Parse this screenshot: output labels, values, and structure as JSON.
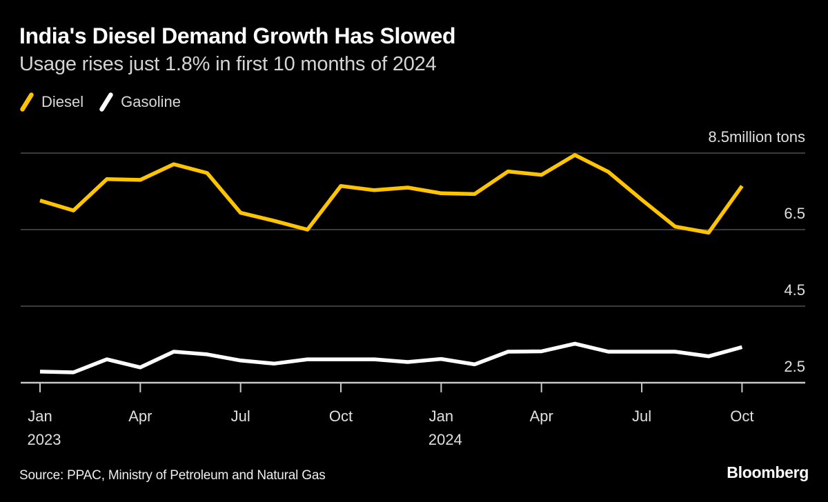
{
  "footer": {
    "source": "Source: PPAC, Ministry of Petroleum and Natural Gas",
    "brand": "Bloomberg"
  },
  "colors": {
    "background": "#000000",
    "title_text": "#FFFFFF",
    "subtitle_text": "#D4D4D4",
    "axis_text": "#E0E0E0",
    "gridline": "#3C3C3C",
    "axis_line": "#C9C9C9",
    "diesel": "#FFC400",
    "gasoline": "#FFFFFF"
  },
  "chart_data": {
    "type": "line",
    "title": "India's Diesel Demand Growth Has Slowed",
    "subtitle": "Usage rises just 1.8% in first 10 months of 2024",
    "unit_label": "million tons",
    "x": [
      "Jan 2023",
      "Feb 2023",
      "Mar 2023",
      "Apr 2023",
      "May 2023",
      "Jun 2023",
      "Jul 2023",
      "Aug 2023",
      "Sep 2023",
      "Oct 2023",
      "Nov 2023",
      "Dec 2023",
      "Jan 2024",
      "Feb 2024",
      "Mar 2024",
      "Apr 2024",
      "May 2024",
      "Jun 2024",
      "Jul 2024",
      "Aug 2024",
      "Sep 2024",
      "Oct 2024"
    ],
    "series": [
      {
        "name": "Diesel",
        "color": "#FFC400",
        "values": [
          7.26,
          7.0,
          7.82,
          7.8,
          8.21,
          7.98,
          6.94,
          6.73,
          6.5,
          7.64,
          7.53,
          7.6,
          7.45,
          7.43,
          8.02,
          7.93,
          8.45,
          8.01,
          7.28,
          6.58,
          6.42,
          7.64
        ]
      },
      {
        "name": "Gasoline",
        "color": "#FFFFFF",
        "values": [
          2.79,
          2.77,
          3.11,
          2.9,
          3.31,
          3.24,
          3.08,
          3.0,
          3.11,
          3.11,
          3.11,
          3.04,
          3.12,
          2.98,
          3.31,
          3.32,
          3.52,
          3.31,
          3.31,
          3.31,
          3.19,
          3.43
        ]
      }
    ],
    "legend": [
      {
        "label": "Diesel",
        "color": "#FFC400"
      },
      {
        "label": "Gasoline",
        "color": "#FFFFFF"
      }
    ],
    "y_axis": {
      "min": 2.5,
      "max": 8.5,
      "gridline_values": [
        8.5,
        6.5,
        4.5
      ],
      "baseline_value": 2.5,
      "grid_on": true,
      "tick_labels": [
        {
          "value": 8.5,
          "label": "8.5million tons"
        },
        {
          "value": 6.5,
          "label": "6.5"
        },
        {
          "value": 4.5,
          "label": "4.5"
        },
        {
          "value": 2.5,
          "label": "2.5"
        }
      ],
      "label_position": "right"
    },
    "x_axis": {
      "tick_indices": [
        0,
        3,
        6,
        9,
        12,
        15,
        18,
        21
      ],
      "tick_labels": [
        "Jan",
        "Apr",
        "Jul",
        "Oct",
        "Jan",
        "Apr",
        "Jul",
        "Oct"
      ],
      "year_labels": [
        {
          "index": 0,
          "label": "2023"
        },
        {
          "index": 12,
          "label": "2024"
        }
      ]
    }
  }
}
